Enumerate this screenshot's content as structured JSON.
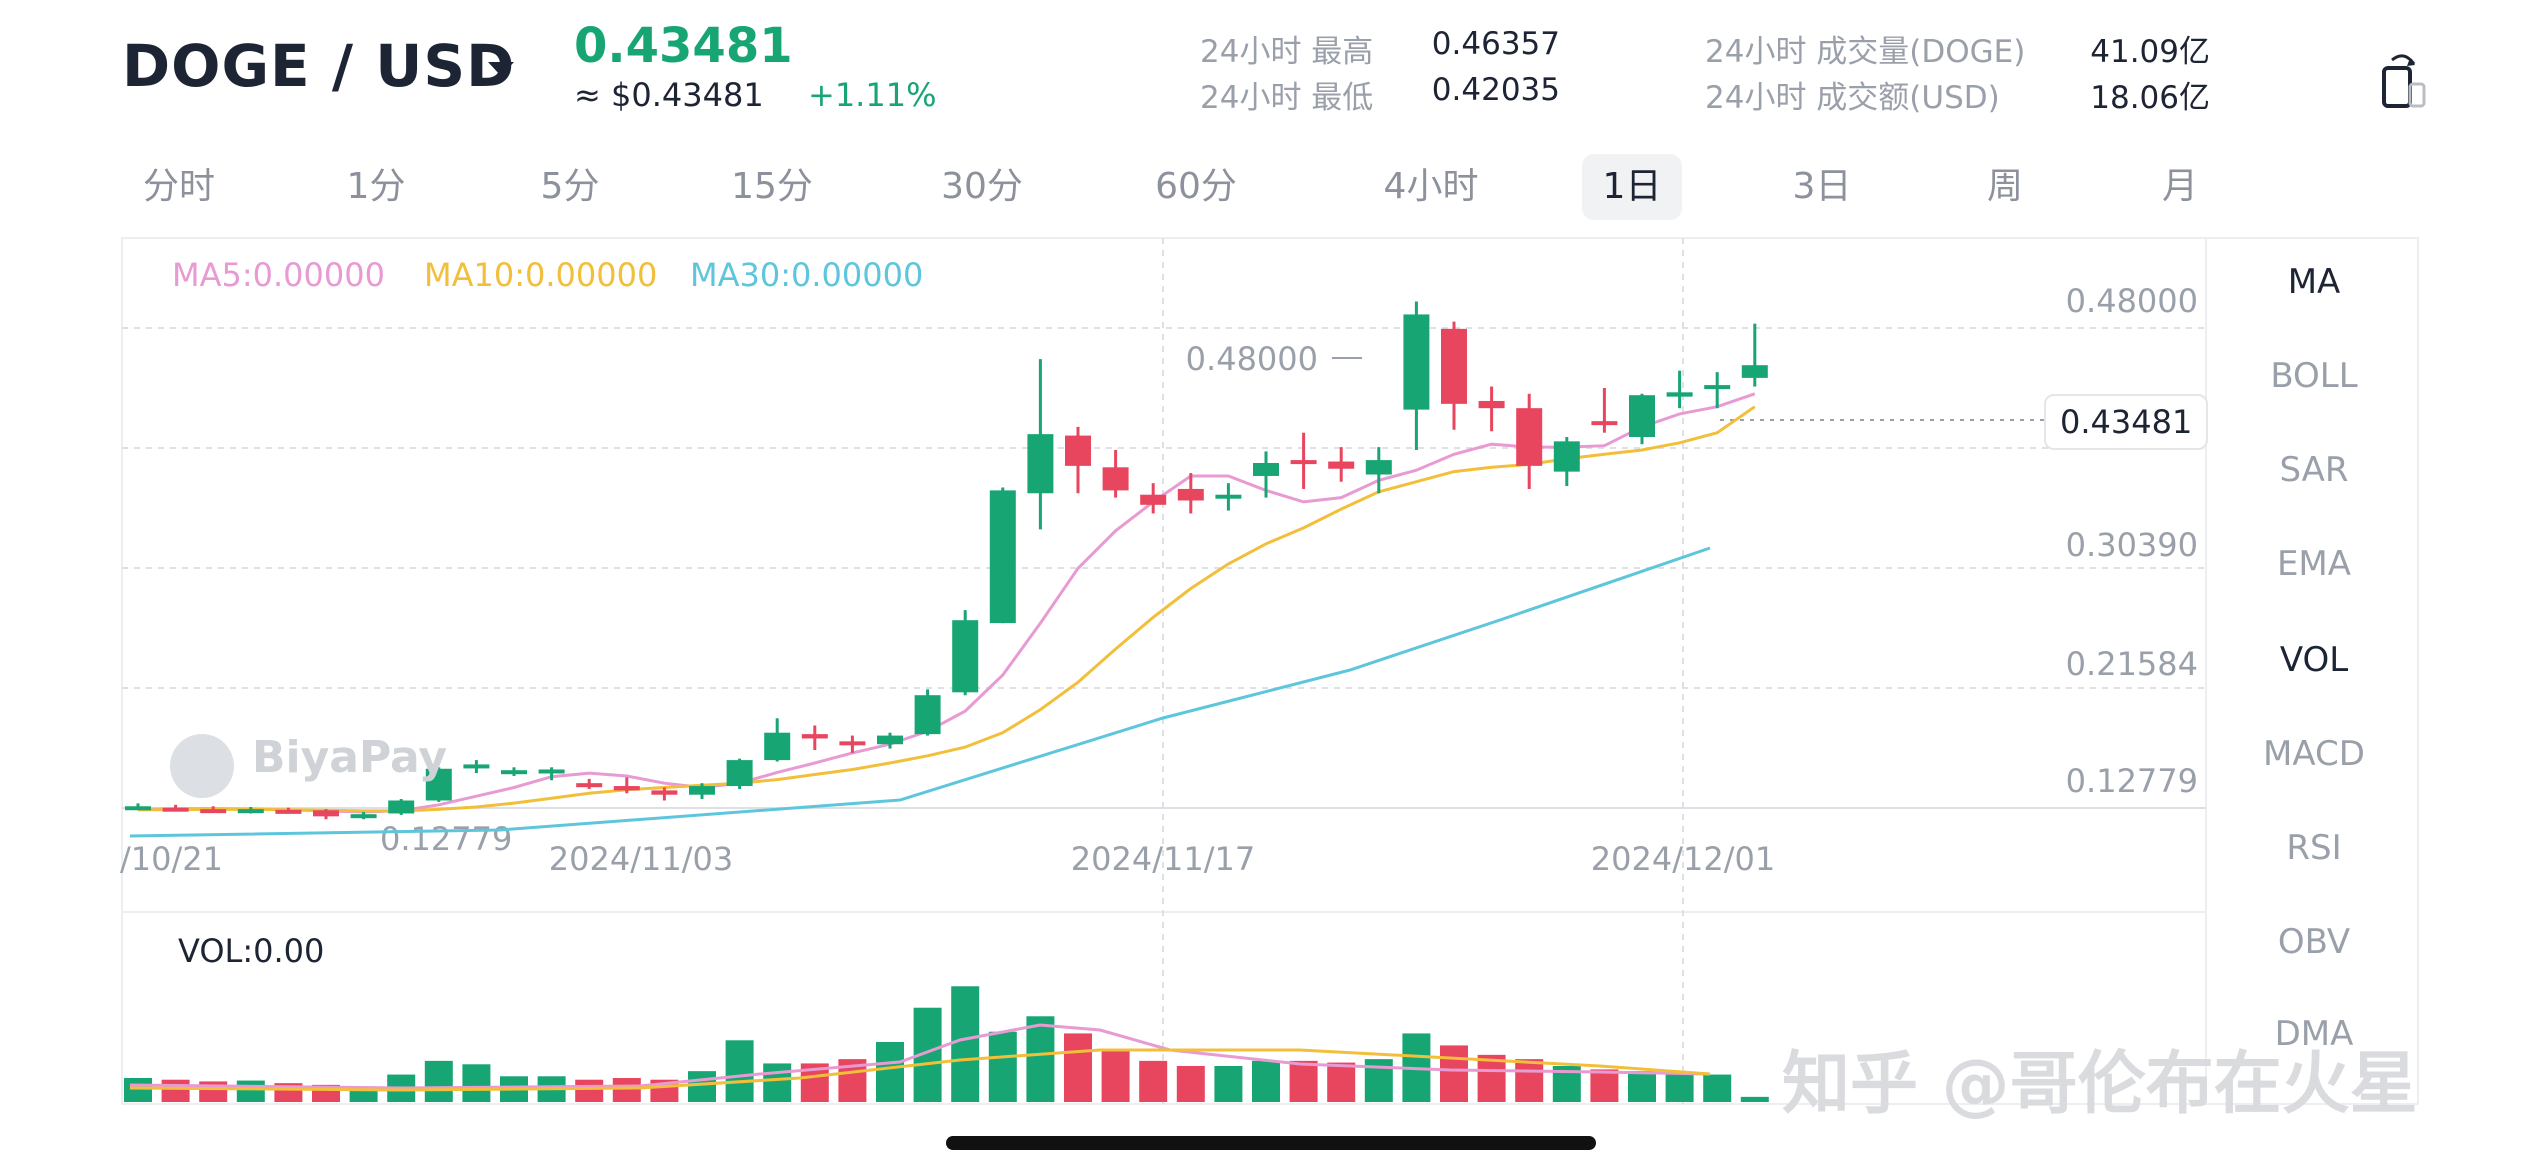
{
  "header": {
    "pair": "DOGE / USD",
    "last_price": "0.43481",
    "approx_usd": "≈ $0.43481",
    "change_pct": "+1.11%",
    "stats": [
      {
        "label": "24小时 最高",
        "value": "0.46357"
      },
      {
        "label": "24小时 最低",
        "value": "0.42035"
      },
      {
        "label": "24小时 成交量(DOGE)",
        "value": "41.09亿"
      },
      {
        "label": "24小时 成交额(USD)",
        "value": "18.06亿"
      }
    ]
  },
  "tabs": [
    "分时",
    "1分",
    "5分",
    "15分",
    "30分",
    "60分",
    "4小时",
    "1日",
    "3日",
    "周",
    "月"
  ],
  "active_tab": "1日",
  "indicators": [
    "MA",
    "BOLL",
    "SAR",
    "EMA",
    "VOL",
    "MACD",
    "RSI",
    "OBV",
    "DMA"
  ],
  "active_indicators": [
    "MA",
    "VOL"
  ],
  "legend": {
    "ma5": "MA5:0.00000",
    "ma10": "MA10:0.00000",
    "ma30": "MA30:0.00000",
    "vol": "VOL:0.00"
  },
  "watermark": "BiyaPay",
  "overlay_watermark": "知乎 @哥伦布在火星",
  "colors": {
    "up": "#17a673",
    "down": "#e8455e",
    "ma5": "#e89ad3",
    "ma10": "#f2bf3a",
    "ma30": "#5ec6dc"
  },
  "chart_data": {
    "type": "candlestick",
    "price_axis_labels": [
      "0.48000",
      "0.30390",
      "0.21584",
      "0.12779"
    ],
    "x_axis_labels": [
      "/10/21",
      "2024/11/03",
      "2024/11/17",
      "2024/12/01"
    ],
    "high_marker": "0.48000",
    "low_marker": "0.12779",
    "current_price_tag": "0.43481",
    "ylim": [
      0.12779,
      0.48
    ],
    "candles": [
      {
        "o": 0.1275,
        "h": 0.131,
        "l": 0.1265,
        "c": 0.129
      },
      {
        "o": 0.128,
        "h": 0.13,
        "l": 0.126,
        "c": 0.127
      },
      {
        "o": 0.127,
        "h": 0.129,
        "l": 0.1245,
        "c": 0.1265
      },
      {
        "o": 0.126,
        "h": 0.1285,
        "l": 0.124,
        "c": 0.127
      },
      {
        "o": 0.1265,
        "h": 0.128,
        "l": 0.124,
        "c": 0.1262
      },
      {
        "o": 0.1262,
        "h": 0.127,
        "l": 0.12,
        "c": 0.122
      },
      {
        "o": 0.1225,
        "h": 0.125,
        "l": 0.12,
        "c": 0.1235
      },
      {
        "o": 0.124,
        "h": 0.134,
        "l": 0.123,
        "c": 0.133
      },
      {
        "o": 0.133,
        "h": 0.156,
        "l": 0.132,
        "c": 0.155
      },
      {
        "o": 0.156,
        "h": 0.161,
        "l": 0.152,
        "c": 0.158
      },
      {
        "o": 0.153,
        "h": 0.156,
        "l": 0.15,
        "c": 0.154
      },
      {
        "o": 0.153,
        "h": 0.156,
        "l": 0.147,
        "c": 0.1545
      },
      {
        "o": 0.145,
        "h": 0.148,
        "l": 0.141,
        "c": 0.144
      },
      {
        "o": 0.143,
        "h": 0.149,
        "l": 0.138,
        "c": 0.14
      },
      {
        "o": 0.14,
        "h": 0.142,
        "l": 0.133,
        "c": 0.137
      },
      {
        "o": 0.137,
        "h": 0.145,
        "l": 0.134,
        "c": 0.143
      },
      {
        "o": 0.143,
        "h": 0.162,
        "l": 0.141,
        "c": 0.161
      },
      {
        "o": 0.161,
        "h": 0.19,
        "l": 0.16,
        "c": 0.18
      },
      {
        "o": 0.179,
        "h": 0.185,
        "l": 0.168,
        "c": 0.176
      },
      {
        "o": 0.174,
        "h": 0.178,
        "l": 0.166,
        "c": 0.172
      },
      {
        "o": 0.172,
        "h": 0.18,
        "l": 0.169,
        "c": 0.178
      },
      {
        "o": 0.179,
        "h": 0.21,
        "l": 0.178,
        "c": 0.206
      },
      {
        "o": 0.208,
        "h": 0.265,
        "l": 0.206,
        "c": 0.258
      },
      {
        "o": 0.256,
        "h": 0.35,
        "l": 0.256,
        "c": 0.348
      },
      {
        "o": 0.346,
        "h": 0.439,
        "l": 0.321,
        "c": 0.387
      },
      {
        "o": 0.386,
        "h": 0.392,
        "l": 0.346,
        "c": 0.365
      },
      {
        "o": 0.364,
        "h": 0.376,
        "l": 0.343,
        "c": 0.348
      },
      {
        "o": 0.345,
        "h": 0.353,
        "l": 0.332,
        "c": 0.338
      },
      {
        "o": 0.349,
        "h": 0.36,
        "l": 0.332,
        "c": 0.341
      },
      {
        "o": 0.344,
        "h": 0.353,
        "l": 0.334,
        "c": 0.345
      },
      {
        "o": 0.358,
        "h": 0.375,
        "l": 0.343,
        "c": 0.367
      },
      {
        "o": 0.369,
        "h": 0.388,
        "l": 0.349,
        "c": 0.367
      },
      {
        "o": 0.368,
        "h": 0.378,
        "l": 0.354,
        "c": 0.363
      },
      {
        "o": 0.359,
        "h": 0.378,
        "l": 0.346,
        "c": 0.369
      },
      {
        "o": 0.404,
        "h": 0.479,
        "l": 0.376,
        "c": 0.47
      },
      {
        "o": 0.46,
        "h": 0.465,
        "l": 0.39,
        "c": 0.408
      },
      {
        "o": 0.41,
        "h": 0.42,
        "l": 0.389,
        "c": 0.405
      },
      {
        "o": 0.405,
        "h": 0.415,
        "l": 0.349,
        "c": 0.365
      },
      {
        "o": 0.361,
        "h": 0.385,
        "l": 0.351,
        "c": 0.382
      },
      {
        "o": 0.396,
        "h": 0.419,
        "l": 0.388,
        "c": 0.395
      },
      {
        "o": 0.385,
        "h": 0.415,
        "l": 0.38,
        "c": 0.414
      },
      {
        "o": 0.413,
        "h": 0.431,
        "l": 0.405,
        "c": 0.416
      },
      {
        "o": 0.42,
        "h": 0.43,
        "l": 0.405,
        "c": 0.421
      },
      {
        "o": 0.426,
        "h": 0.4636,
        "l": 0.42,
        "c": 0.4348
      }
    ],
    "volume": [
      28,
      26,
      24,
      25,
      22,
      20,
      18,
      32,
      48,
      44,
      30,
      30,
      26,
      28,
      26,
      36,
      72,
      45,
      45,
      50,
      70,
      110,
      135,
      82,
      100,
      80,
      60,
      48,
      42,
      42,
      48,
      48,
      46,
      50,
      80,
      66,
      55,
      50,
      42,
      38,
      36,
      34,
      32,
      6
    ],
    "volume_max": 140,
    "ma5": [
      0.1268,
      0.1272,
      0.1274,
      0.127,
      0.1265,
      0.1258,
      0.125,
      0.126,
      0.13,
      0.136,
      0.142,
      0.1495,
      0.152,
      0.15,
      0.145,
      0.142,
      0.145,
      0.1525,
      0.159,
      0.166,
      0.172,
      0.181,
      0.195,
      0.22,
      0.256,
      0.294,
      0.32,
      0.34,
      0.358,
      0.358,
      0.348,
      0.34,
      0.343,
      0.355,
      0.362,
      0.373,
      0.38,
      0.378,
      0.378,
      0.379,
      0.392,
      0.401,
      0.406,
      0.415
    ],
    "ma10": [
      0.1265,
      0.1267,
      0.1268,
      0.1268,
      0.1266,
      0.1262,
      0.1258,
      0.1258,
      0.1268,
      0.1285,
      0.1312,
      0.1345,
      0.138,
      0.1405,
      0.142,
      0.1435,
      0.145,
      0.1475,
      0.151,
      0.1545,
      0.159,
      0.164,
      0.17,
      0.18,
      0.196,
      0.215,
      0.238,
      0.26,
      0.28,
      0.297,
      0.311,
      0.322,
      0.335,
      0.347,
      0.354,
      0.361,
      0.364,
      0.366,
      0.37,
      0.373,
      0.376,
      0.381,
      0.388,
      0.406
    ]
  }
}
